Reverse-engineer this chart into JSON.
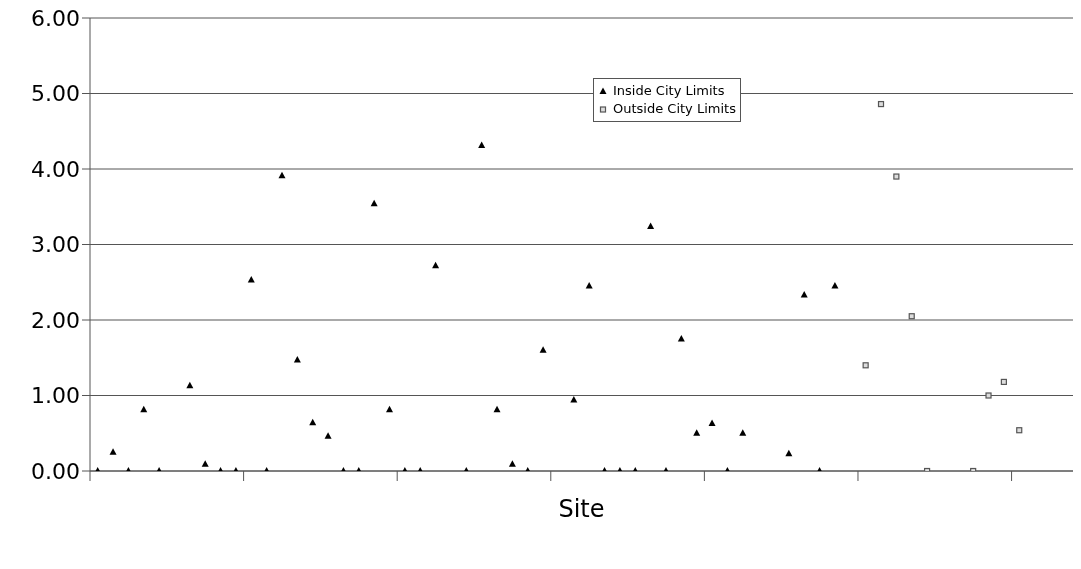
{
  "chart_data": {
    "type": "scatter",
    "xlabel": "Site",
    "categories": [
      null,
      null,
      null,
      null,
      null,
      null,
      null,
      null,
      null,
      null,
      null,
      null,
      null,
      null,
      null,
      null,
      null,
      null,
      null,
      null,
      null,
      null,
      null,
      null,
      null,
      null,
      null,
      null,
      null,
      null,
      null,
      null,
      null,
      null,
      null,
      null,
      null,
      null,
      null,
      null,
      null,
      null,
      null,
      null,
      null,
      null,
      null,
      null,
      null,
      null,
      null,
      null,
      null,
      null,
      null,
      null,
      null,
      null,
      null,
      null,
      null,
      null,
      null,
      null
    ],
    "series": [
      {
        "name": "Inside City Limits",
        "color": "#000000",
        "marker": "triangle",
        "values": [
          0,
          0.25,
          0,
          0.81,
          0,
          null,
          1.13,
          0.09,
          0,
          0,
          2.53,
          0,
          3.91,
          1.47,
          0.64,
          0.46,
          0,
          0,
          3.54,
          0.81,
          0,
          0,
          2.72,
          null,
          0,
          4.31,
          0.81,
          0.09,
          0,
          1.6,
          null,
          0.94,
          2.45,
          0,
          0,
          0,
          3.24,
          0,
          1.75,
          0.5,
          0.63,
          0,
          0.5,
          null,
          null,
          0.23,
          2.33,
          0,
          2.45,
          null,
          null,
          null,
          null,
          null,
          null,
          null,
          null,
          null,
          null,
          null,
          null,
          null,
          null,
          null
        ]
      },
      {
        "name": "Outside City Limits",
        "color": "#555555",
        "marker": "square",
        "values": [
          null,
          null,
          null,
          null,
          null,
          null,
          null,
          null,
          null,
          null,
          null,
          null,
          null,
          null,
          null,
          null,
          null,
          null,
          null,
          null,
          null,
          null,
          null,
          null,
          null,
          null,
          null,
          null,
          null,
          null,
          null,
          null,
          null,
          null,
          null,
          null,
          null,
          null,
          null,
          null,
          null,
          null,
          null,
          null,
          null,
          null,
          null,
          null,
          null,
          null,
          1.4,
          4.86,
          3.9,
          2.05,
          0,
          null,
          null,
          0,
          1,
          1.18,
          0.54,
          null,
          null,
          null
        ]
      }
    ],
    "ylim": [
      0,
      6
    ],
    "yticks": [
      {
        "value": 0,
        "label": "0.00"
      },
      {
        "value": 1,
        "label": "1.00"
      },
      {
        "value": 2,
        "label": "2.00"
      },
      {
        "value": 3,
        "label": "3.00"
      },
      {
        "value": 4,
        "label": "4.00"
      },
      {
        "value": 5,
        "label": "5.00"
      },
      {
        "value": 6,
        "label": "6.00"
      }
    ],
    "grid": "y",
    "legend": "top",
    "tick_labels": "y"
  }
}
